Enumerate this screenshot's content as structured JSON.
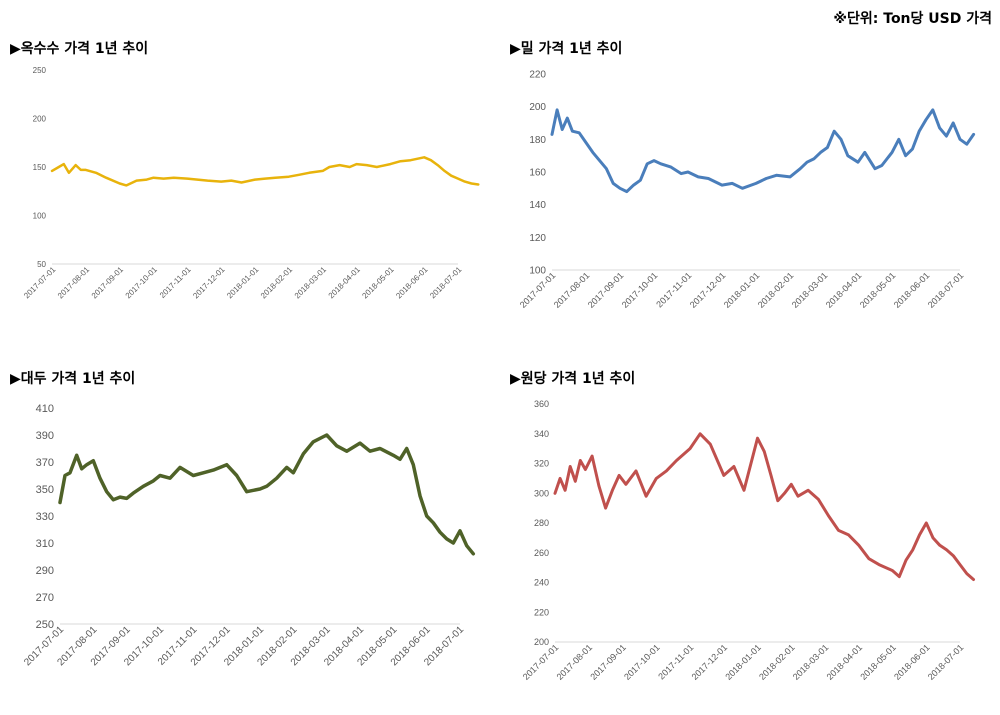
{
  "unit_note": "※단위: Ton당 USD 가격",
  "panels": [
    {
      "title": "▶옥수수 가격 1년 추이"
    },
    {
      "title": "▶밀 가격 1년 추이"
    },
    {
      "title": "▶대두 가격 1년 추이"
    },
    {
      "title": "▶원당 가격 1년 추이"
    }
  ],
  "chart_data": [
    {
      "type": "line",
      "title": "▶옥수수 가격 1년 추이",
      "color": "#E8B30C",
      "x_ticks": [
        "2017-07-01",
        "2017-08-01",
        "2017-09-01",
        "2017-10-01",
        "2017-11-01",
        "2017-12-01",
        "2018-01-01",
        "2018-02-01",
        "2018-03-01",
        "2018-04-01",
        "2018-05-01",
        "2018-06-01",
        "2018-07-01"
      ],
      "ylim": [
        50,
        250
      ],
      "y_ticks": [
        50,
        100,
        150,
        200,
        250
      ],
      "grid": false,
      "series": [
        {
          "x": [
            0,
            0.2,
            0.35,
            0.5,
            0.7,
            0.85,
            1,
            1.3,
            1.6,
            2,
            2.2,
            2.5,
            2.8,
            3,
            3.3,
            3.6,
            4,
            4.3,
            4.6,
            5,
            5.3,
            5.6,
            6,
            6.3,
            6.6,
            7,
            7.3,
            7.6,
            8,
            8.2,
            8.5,
            8.8,
            9,
            9.3,
            9.6,
            10,
            10.3,
            10.6,
            11,
            11.2,
            11.4,
            11.6,
            11.8,
            12,
            12.2,
            12.4,
            12.6
          ],
          "values": [
            146,
            150,
            153,
            144,
            152,
            147,
            147,
            144,
            139,
            133,
            131,
            136,
            137,
            139,
            138,
            139,
            138,
            137,
            136,
            135,
            136,
            134,
            137,
            138,
            139,
            140,
            142,
            144,
            146,
            150,
            152,
            150,
            153,
            152,
            150,
            153,
            156,
            157,
            160,
            157,
            152,
            146,
            141,
            138,
            135,
            133,
            132
          ]
        }
      ]
    },
    {
      "type": "line",
      "title": "▶밀 가격 1년 추이",
      "color": "#4A7EBB",
      "x_ticks": [
        "2017-07-01",
        "2017-08-01",
        "2017-09-01",
        "2017-10-01",
        "2017-11-01",
        "2017-12-01",
        "2018-01-01",
        "2018-02-01",
        "2018-03-01",
        "2018-04-01",
        "2018-05-01",
        "2018-06-01",
        "2018-07-01"
      ],
      "ylim": [
        100,
        220
      ],
      "y_ticks": [
        100,
        120,
        140,
        160,
        180,
        200,
        220
      ],
      "grid": false,
      "series": [
        {
          "x": [
            0,
            0.15,
            0.3,
            0.45,
            0.6,
            0.8,
            1,
            1.2,
            1.4,
            1.6,
            1.8,
            2,
            2.2,
            2.4,
            2.6,
            2.8,
            3,
            3.2,
            3.5,
            3.8,
            4,
            4.3,
            4.6,
            5,
            5.3,
            5.6,
            6,
            6.3,
            6.6,
            7,
            7.3,
            7.5,
            7.7,
            7.9,
            8.1,
            8.3,
            8.5,
            8.7,
            9,
            9.2,
            9.5,
            9.7,
            10,
            10.2,
            10.4,
            10.6,
            10.8,
            11,
            11.2,
            11.4,
            11.6,
            11.8,
            12,
            12.2,
            12.4
          ],
          "values": [
            183,
            198,
            186,
            193,
            185,
            184,
            178,
            172,
            167,
            162,
            153,
            150,
            148,
            152,
            155,
            165,
            167,
            165,
            163,
            159,
            160,
            157,
            156,
            152,
            153,
            150,
            153,
            156,
            158,
            157,
            162,
            166,
            168,
            172,
            175,
            185,
            180,
            170,
            166,
            172,
            162,
            164,
            172,
            180,
            170,
            174,
            185,
            192,
            198,
            187,
            182,
            190,
            180,
            177,
            183
          ]
        }
      ]
    },
    {
      "type": "line",
      "title": "▶대두 가격 1년 추이",
      "color": "#4F6228",
      "x_ticks": [
        "2017-07-01",
        "2017-08-01",
        "2017-09-01",
        "2017-10-01",
        "2017-11-01",
        "2017-12-01",
        "2018-01-01",
        "2018-02-01",
        "2018-03-01",
        "2018-04-01",
        "2018-05-01",
        "2018-06-01",
        "2018-07-01"
      ],
      "ylim": [
        250,
        410
      ],
      "y_ticks": [
        250,
        270,
        290,
        310,
        330,
        350,
        370,
        390,
        410
      ],
      "grid": false,
      "series": [
        {
          "x": [
            0,
            0.15,
            0.3,
            0.5,
            0.65,
            0.8,
            1,
            1.2,
            1.4,
            1.6,
            1.8,
            2,
            2.2,
            2.5,
            2.8,
            3,
            3.3,
            3.6,
            4,
            4.3,
            4.6,
            5,
            5.3,
            5.6,
            6,
            6.2,
            6.5,
            6.8,
            7,
            7.3,
            7.6,
            8,
            8.3,
            8.6,
            9,
            9.3,
            9.6,
            10,
            10.2,
            10.4,
            10.6,
            10.8,
            11,
            11.2,
            11.4,
            11.6,
            11.8,
            12,
            12.2,
            12.4
          ],
          "values": [
            340,
            360,
            362,
            375,
            365,
            368,
            371,
            358,
            348,
            342,
            344,
            343,
            347,
            352,
            356,
            360,
            358,
            366,
            360,
            362,
            364,
            368,
            360,
            348,
            350,
            352,
            358,
            366,
            362,
            376,
            385,
            390,
            382,
            378,
            384,
            378,
            380,
            375,
            372,
            380,
            368,
            345,
            330,
            325,
            318,
            313,
            310,
            319,
            308,
            302
          ]
        }
      ]
    },
    {
      "type": "line",
      "title": "▶원당 가격 1년 추이",
      "color": "#C0504D",
      "x_ticks": [
        "2017-07-01",
        "2017-08-01",
        "2017-09-01",
        "2017-10-01",
        "2017-11-01",
        "2017-12-01",
        "2018-01-01",
        "2018-02-01",
        "2018-03-01",
        "2018-04-01",
        "2018-05-01",
        "2018-06-01",
        "2018-07-01"
      ],
      "ylim": [
        200,
        360
      ],
      "y_ticks": [
        200,
        220,
        240,
        260,
        280,
        300,
        320,
        340,
        360
      ],
      "grid": false,
      "series": [
        {
          "x": [
            0,
            0.15,
            0.3,
            0.45,
            0.6,
            0.75,
            0.9,
            1.1,
            1.3,
            1.5,
            1.7,
            1.9,
            2.1,
            2.4,
            2.7,
            3,
            3.3,
            3.6,
            4,
            4.3,
            4.6,
            5,
            5.3,
            5.6,
            6,
            6.2,
            6.4,
            6.6,
            6.8,
            7,
            7.2,
            7.5,
            7.8,
            8.1,
            8.4,
            8.7,
            9,
            9.3,
            9.6,
            10,
            10.2,
            10.4,
            10.6,
            10.8,
            11,
            11.2,
            11.4,
            11.6,
            11.8,
            12,
            12.2,
            12.4
          ],
          "values": [
            300,
            310,
            302,
            318,
            308,
            322,
            316,
            325,
            305,
            290,
            302,
            312,
            306,
            315,
            298,
            310,
            315,
            322,
            330,
            340,
            333,
            312,
            318,
            302,
            337,
            328,
            312,
            295,
            300,
            306,
            298,
            302,
            296,
            285,
            275,
            272,
            265,
            256,
            252,
            248,
            244,
            255,
            262,
            272,
            280,
            270,
            265,
            262,
            258,
            252,
            246,
            242
          ]
        }
      ]
    }
  ]
}
